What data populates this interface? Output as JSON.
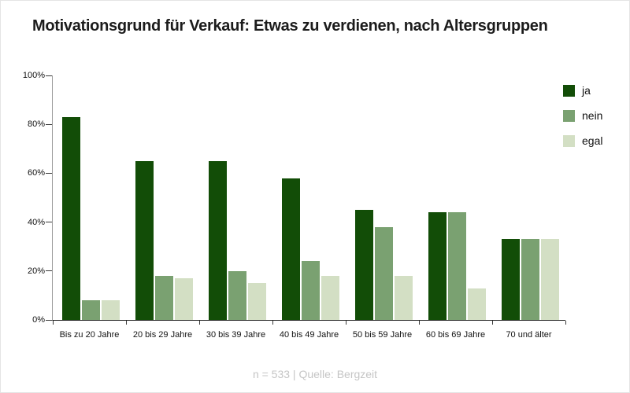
{
  "chart_data": {
    "type": "bar",
    "title": "Motivationsgrund für Verkauf: Etwas zu verdienen, nach Altersgruppen",
    "categories": [
      "Bis zu 20 Jahre",
      "20 bis 29 Jahre",
      "30 bis 39 Jahre",
      "40 bis 49 Jahre",
      "50 bis 59 Jahre",
      "60 bis 69 Jahre",
      "70 und älter"
    ],
    "series": [
      {
        "name": "ja",
        "color": "#124d07",
        "values": [
          83,
          65,
          65,
          58,
          45,
          44,
          33
        ]
      },
      {
        "name": "nein",
        "color": "#7aa171",
        "values": [
          8,
          18,
          20,
          24,
          38,
          44,
          33
        ]
      },
      {
        "name": "egal",
        "color": "#d3dfc4",
        "values": [
          8,
          17,
          15,
          18,
          18,
          13,
          33
        ]
      }
    ],
    "xlabel": "",
    "ylabel": "",
    "ylim": [
      0,
      100
    ],
    "yticks": [
      "0%",
      "20%",
      "40%",
      "60%",
      "80%",
      "100%"
    ],
    "grid": false,
    "legend_position": "right",
    "source_note": "n = 533 | Quelle: Bergzeit"
  }
}
